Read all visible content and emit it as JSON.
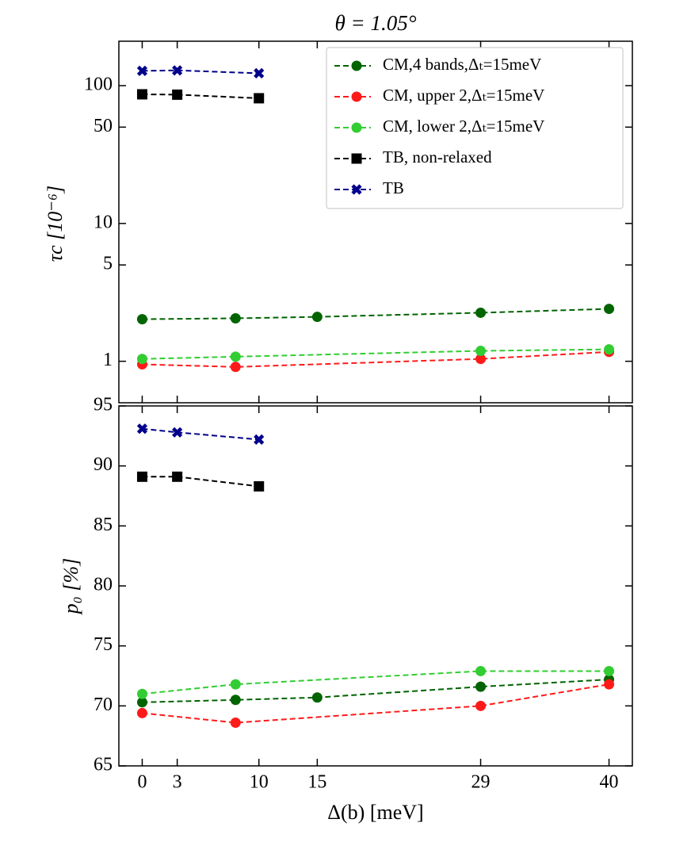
{
  "chart_data": [
    {
      "type": "line",
      "title": "θ = 1.05°",
      "ylabel": "τc [10⁻⁶]",
      "log_y": true,
      "sharex": true,
      "ylim": [
        0.5,
        210
      ],
      "yticks": [
        1,
        5,
        10,
        50,
        100
      ],
      "legend": "upper right",
      "series": [
        {
          "name": "CM,4 bands,Δₜ=15meV",
          "color": "#006400",
          "marker": "circle",
          "x": [
            0,
            8,
            15,
            29,
            40
          ],
          "values": [
            2.02,
            2.05,
            2.1,
            2.25,
            2.4
          ]
        },
        {
          "name": "CM, upper 2,Δₜ=15meV",
          "color": "#ff1a1a",
          "marker": "circle",
          "x": [
            0,
            8,
            29,
            40
          ],
          "values": [
            0.95,
            0.91,
            1.04,
            1.17
          ]
        },
        {
          "name": "CM, lower 2,Δₜ=15meV",
          "color": "#32cd32",
          "marker": "circle",
          "x": [
            0,
            8,
            29,
            40
          ],
          "values": [
            1.04,
            1.08,
            1.19,
            1.22
          ]
        },
        {
          "name": "TB, non-relaxed",
          "color": "#000000",
          "marker": "square",
          "x": [
            0,
            3,
            10
          ],
          "values": [
            86.5,
            86,
            81
          ]
        },
        {
          "name": "TB",
          "color": "#00008b",
          "marker": "x",
          "x": [
            0,
            3,
            10
          ],
          "values": [
            128,
            129,
            123
          ]
        }
      ]
    },
    {
      "type": "line",
      "ylabel": "p₀ [%]",
      "xlabel": "Δ(b) [meV]",
      "xlim": [
        -2,
        42
      ],
      "xticks": [
        0,
        3,
        10,
        15,
        29,
        40
      ],
      "ylim": [
        65,
        95
      ],
      "yticks": [
        65,
        70,
        75,
        80,
        85,
        90,
        95
      ],
      "series": [
        {
          "color": "#006400",
          "marker": "circle",
          "x": [
            0,
            8,
            15,
            29,
            40
          ],
          "values": [
            70.3,
            70.5,
            70.7,
            71.6,
            72.2
          ]
        },
        {
          "color": "#ff1a1a",
          "marker": "circle",
          "x": [
            0,
            8,
            29,
            40
          ],
          "values": [
            69.4,
            68.6,
            70.0,
            71.8
          ]
        },
        {
          "color": "#32cd32",
          "marker": "circle",
          "x": [
            0,
            8,
            29,
            40
          ],
          "values": [
            71.0,
            71.8,
            72.9,
            72.9
          ]
        },
        {
          "color": "#000000",
          "marker": "square",
          "x": [
            0,
            3,
            10
          ],
          "values": [
            89.1,
            89.1,
            88.3
          ]
        },
        {
          "color": "#00008b",
          "marker": "x",
          "x": [
            0,
            3,
            10
          ],
          "values": [
            93.1,
            92.8,
            92.2
          ]
        }
      ]
    }
  ]
}
